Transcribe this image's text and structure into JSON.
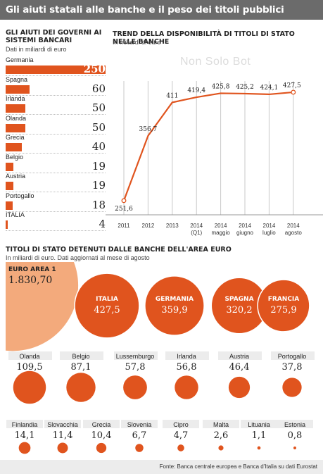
{
  "header": {
    "title": "Gli aiuti statali alle banche e il peso dei titoli pubblici"
  },
  "watermark": "Non Solo Bot",
  "footer": {
    "source": "Fonte: Banca centrale europea e Banca d'Italia su dati Eurostat"
  },
  "colors": {
    "accent": "#e0541e",
    "light": "#f3aa7c",
    "header": "#6b6b6b"
  },
  "chart_data": [
    {
      "type": "bar",
      "title": "GLI AIUTI DEI GOVERNI AI SISTEMI BANCARI",
      "subtitle": "Dati in miliardi di euro",
      "categories": [
        "Germania",
        "Spagna",
        "Irlanda",
        "Olanda",
        "Grecia",
        "Belgio",
        "Austria",
        "Portogallo",
        "ITALIA"
      ],
      "values": [
        250,
        60,
        50,
        50,
        40,
        19,
        19,
        18,
        4
      ],
      "value_labels": [
        "250",
        "60",
        "50",
        "50",
        "40",
        "19",
        "19",
        "18",
        "4"
      ],
      "xlim": [
        0,
        250
      ]
    },
    {
      "type": "line",
      "title": "TREND DELLA DISPONIBILITÀ DI TITOLI DI STATO NELLE BANCHE",
      "subtitle": "In miliardi di euro",
      "x": [
        "2011",
        "2012",
        "2013",
        "2014 (Q1)",
        "2014 maggio",
        "2014 giugno",
        "2014 luglio",
        "2014 agosto"
      ],
      "x_tick_lines": [
        [
          "2011"
        ],
        [
          "2012"
        ],
        [
          "2013"
        ],
        [
          "2014",
          "(Q1)"
        ],
        [
          "2014",
          "maggio"
        ],
        [
          "2014",
          "giugno"
        ],
        [
          "2014",
          "luglio"
        ],
        [
          "2014",
          "agosto"
        ]
      ],
      "y": [
        251.6,
        356.7,
        411,
        419.4,
        425.8,
        425.2,
        424.1,
        427.5
      ],
      "value_labels": [
        "251,6",
        "356,7",
        "411",
        "419,4",
        "425,8",
        "425,2",
        "424,1",
        "427,5"
      ],
      "ylim": [
        240,
        440
      ]
    },
    {
      "type": "bubble",
      "title": "TITOLI DI STATO DETENUTI DALLE BANCHE DELL'AREA EURO",
      "subtitle": "In miliardi di euro. Dati aggiornati al mese di agosto",
      "total": {
        "name": "EURO AREA 1",
        "value": 1830.7,
        "label": "1.830,70"
      },
      "big": [
        {
          "name": "ITALIA",
          "value": 427.5,
          "label": "427,5"
        },
        {
          "name": "GERMANIA",
          "value": 359.9,
          "label": "359,9"
        },
        {
          "name": "SPAGNA",
          "value": 320.2,
          "label": "320,2"
        },
        {
          "name": "FRANCIA",
          "value": 275.9,
          "label": "275,9"
        }
      ],
      "mid": [
        {
          "name": "Olanda",
          "value": 109.5,
          "label": "109,5"
        },
        {
          "name": "Belgio",
          "value": 87.1,
          "label": "87,1"
        },
        {
          "name": "Lussemburgo",
          "value": 57.8,
          "label": "57,8"
        },
        {
          "name": "Irlanda",
          "value": 56.8,
          "label": "56,8"
        },
        {
          "name": "Austria",
          "value": 46.4,
          "label": "46,4"
        },
        {
          "name": "Portogallo",
          "value": 37.8,
          "label": "37,8"
        }
      ],
      "small": [
        {
          "name": "Finlandia",
          "value": 14.1,
          "label": "14,1"
        },
        {
          "name": "Slovacchia",
          "value": 11.4,
          "label": "11,4"
        },
        {
          "name": "Grecia",
          "value": 10.4,
          "label": "10,4"
        },
        {
          "name": "Slovenia",
          "value": 6.7,
          "label": "6,7"
        },
        {
          "name": "Cipro",
          "value": 4.7,
          "label": "4,7"
        },
        {
          "name": "Malta",
          "value": 2.6,
          "label": "2,6"
        },
        {
          "name": "Lituania",
          "value": 1.1,
          "label": "1,1"
        },
        {
          "name": "Estonia",
          "value": 0.8,
          "label": "0,8"
        }
      ]
    }
  ]
}
